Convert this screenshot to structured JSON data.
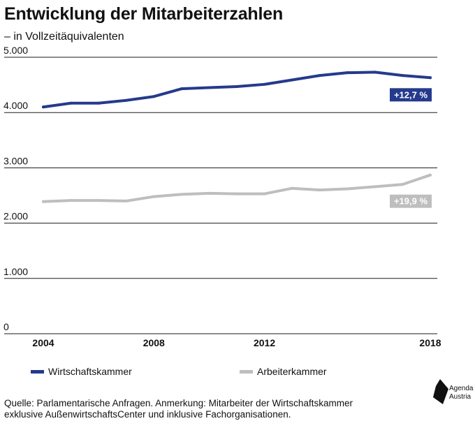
{
  "title": "Entwicklung der Mitarbeiterzahlen",
  "subtitle": "– in Vollzeitäquivalenten",
  "source": {
    "line1": "Quelle: Parlamentarische Anfragen. Anmerkung: Mitarbeiter der Wirtschaftskammer",
    "line2": "exklusive AußenwirtschaftsCenter und inklusive Fachorganisationen."
  },
  "logo": {
    "line1": "Agenda",
    "line2": "Austria"
  },
  "chart_data": {
    "type": "line",
    "x": [
      2004,
      2005,
      2006,
      2007,
      2008,
      2009,
      2010,
      2011,
      2012,
      2013,
      2014,
      2015,
      2016,
      2017,
      2018
    ],
    "series": [
      {
        "name": "Wirtschaftskammer",
        "color": "#253a8c",
        "values": [
          4100,
          4170,
          4170,
          4220,
          4290,
          4430,
          4450,
          4470,
          4510,
          4590,
          4670,
          4720,
          4730,
          4670,
          4630
        ],
        "label": "+12,7 %"
      },
      {
        "name": "Arbeiterkammer",
        "color": "#bebebe",
        "values": [
          2390,
          2410,
          2410,
          2400,
          2480,
          2520,
          2540,
          2530,
          2530,
          2630,
          2600,
          2620,
          2660,
          2700,
          2870
        ],
        "label": "+19,9 %"
      }
    ],
    "y_ticks": [
      0,
      1000,
      2000,
      3000,
      4000,
      5000
    ],
    "y_tick_labels": [
      "0",
      "1.000",
      "2.000",
      "3.000",
      "4.000",
      "5.000"
    ],
    "x_ticks": [
      2004,
      2008,
      2012,
      2018
    ],
    "x_tick_labels": [
      "2004",
      "2008",
      "2012",
      "2018"
    ],
    "ylim": [
      0,
      5000
    ],
    "xlim": [
      2004,
      2018
    ],
    "grid": true,
    "legend": "bottom",
    "xlabel": "",
    "ylabel": ""
  }
}
